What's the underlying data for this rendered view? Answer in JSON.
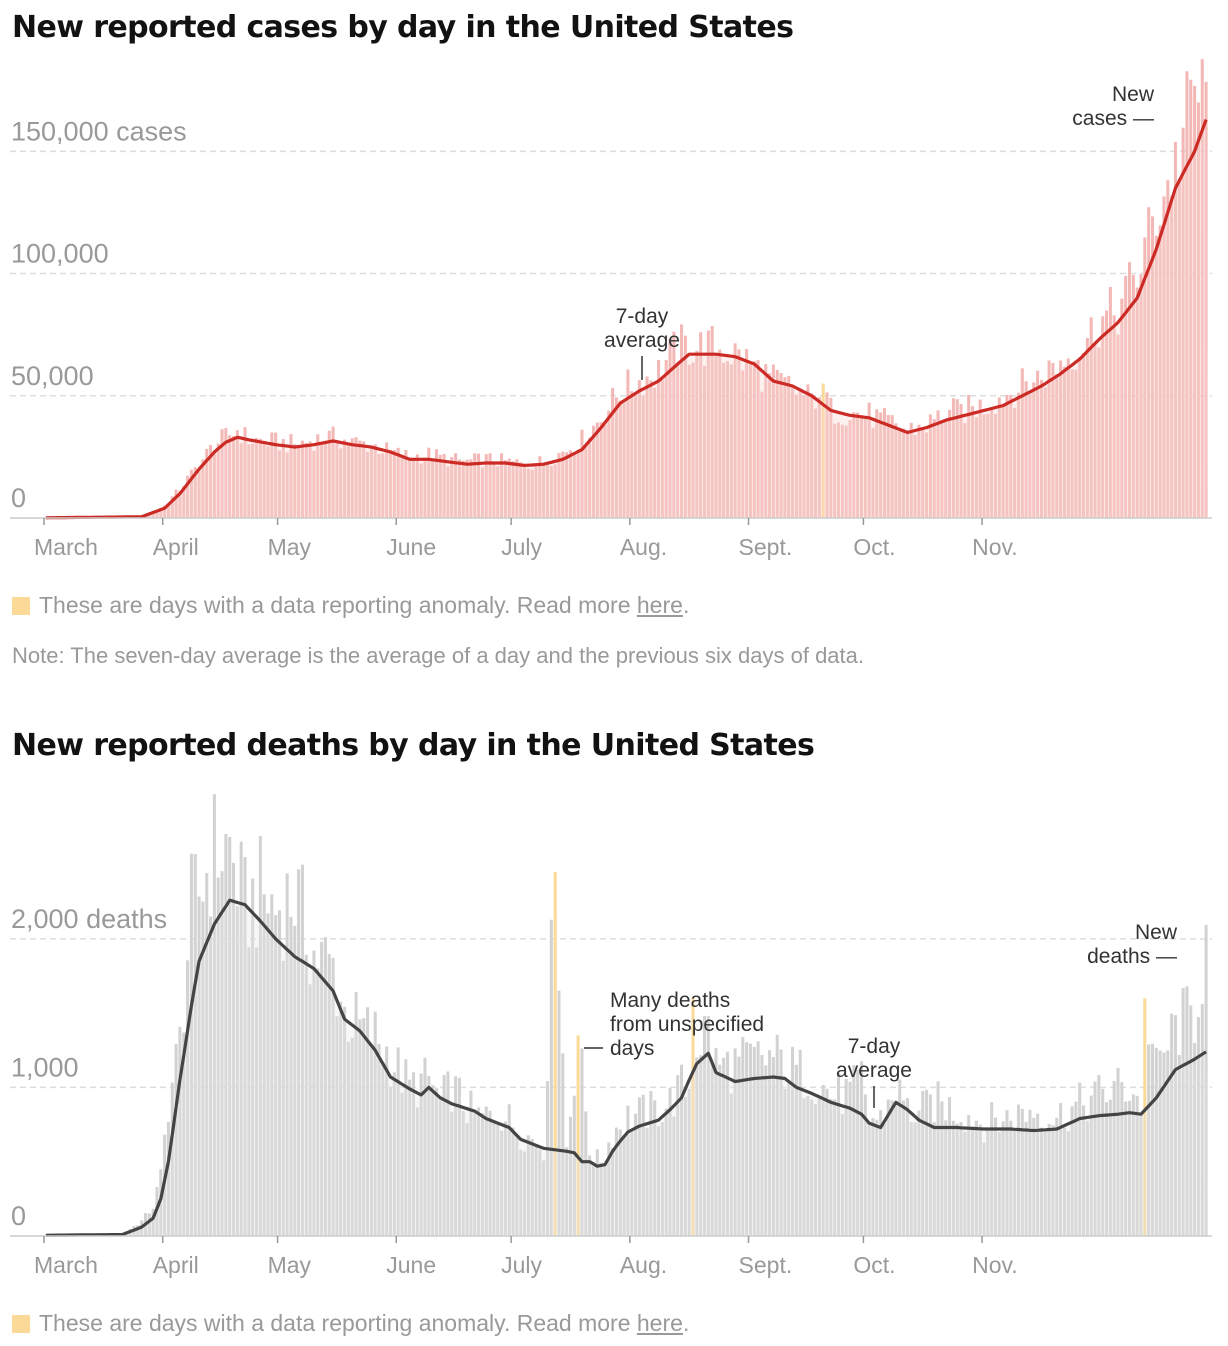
{
  "cases": {
    "title": "New reported cases by day in the United States",
    "legend_text": "These are days with a data reporting anomaly. Read more ",
    "legend_link": "here",
    "legend_end": ".",
    "note": "Note: The seven-day average is the average of a day and the previous six days of data."
  },
  "deaths": {
    "title": "New reported deaths by day in the United States",
    "legend_text": "These are days with a data reporting anomaly. Read more ",
    "legend_link": "here",
    "legend_end": "."
  },
  "colors": {
    "cases_bar": "#f3b8b6",
    "cases_avg": "#cc2a24",
    "deaths_bar": "#d2d2d2",
    "deaths_avg": "#444444",
    "anomaly": "#fbd997",
    "grid": "#dddddd",
    "tick_text": "#999999"
  },
  "chart_data": [
    {
      "type": "bar",
      "ylim": [
        0,
        180000
      ],
      "grid": true,
      "yticks": [
        {
          "value": 0,
          "label": "0"
        },
        {
          "value": 50000,
          "label": "50,000"
        },
        {
          "value": 100000,
          "label": "100,000"
        },
        {
          "value": 150000,
          "label": "150,000 cases"
        }
      ],
      "xticks": [
        "March",
        "April",
        "May",
        "June",
        "July",
        "Aug.",
        "Sept.",
        "Oct.",
        "Nov."
      ],
      "series_names": {
        "bars": "New cases",
        "line": "7-day average"
      },
      "annotations": [
        {
          "text": [
            "7-day",
            "average"
          ]
        },
        {
          "text": [
            "New",
            "cases —"
          ]
        }
      ],
      "anomaly_days": [
        203
      ],
      "average_anchors": [
        [
          0,
          100
        ],
        [
          25,
          500
        ],
        [
          31,
          4000
        ],
        [
          35,
          10000
        ],
        [
          40,
          20000
        ],
        [
          44,
          27000
        ],
        [
          47,
          31000
        ],
        [
          50,
          33000
        ],
        [
          53,
          32000
        ],
        [
          60,
          30000
        ],
        [
          65,
          29000
        ],
        [
          70,
          30000
        ],
        [
          75,
          31500
        ],
        [
          80,
          30000
        ],
        [
          85,
          29000
        ],
        [
          90,
          27000
        ],
        [
          95,
          24000
        ],
        [
          100,
          24000
        ],
        [
          105,
          23000
        ],
        [
          110,
          22000
        ],
        [
          115,
          22500
        ],
        [
          120,
          22500
        ],
        [
          125,
          21500
        ],
        [
          130,
          22000
        ],
        [
          135,
          24000
        ],
        [
          140,
          28000
        ],
        [
          145,
          37000
        ],
        [
          150,
          47000
        ],
        [
          155,
          52000
        ],
        [
          160,
          56000
        ],
        [
          165,
          63000
        ],
        [
          168,
          67000
        ],
        [
          175,
          67000
        ],
        [
          180,
          66000
        ],
        [
          185,
          63000
        ],
        [
          190,
          56000
        ],
        [
          195,
          54000
        ],
        [
          200,
          50000
        ],
        [
          205,
          44000
        ],
        [
          210,
          42000
        ],
        [
          215,
          41000
        ],
        [
          220,
          38000
        ],
        [
          225,
          35000
        ],
        [
          230,
          37000
        ],
        [
          235,
          40000
        ],
        [
          240,
          42000
        ],
        [
          245,
          44000
        ],
        [
          250,
          46000
        ],
        [
          255,
          50000
        ],
        [
          260,
          54000
        ],
        [
          265,
          59000
        ],
        [
          270,
          65000
        ],
        [
          275,
          73000
        ],
        [
          280,
          80000
        ],
        [
          285,
          90000
        ],
        [
          290,
          110000
        ],
        [
          295,
          135000
        ],
        [
          300,
          150000
        ],
        [
          303,
          163000
        ]
      ],
      "daily_anchors": [
        [
          0,
          100
        ],
        [
          25,
          600
        ],
        [
          31,
          5000
        ],
        [
          35,
          12000
        ],
        [
          40,
          22000
        ],
        [
          44,
          30000
        ],
        [
          47,
          33000
        ],
        [
          50,
          36000
        ],
        [
          53,
          32000
        ],
        [
          60,
          31000
        ],
        [
          65,
          30000
        ],
        [
          70,
          32000
        ],
        [
          75,
          33000
        ],
        [
          80,
          31000
        ],
        [
          85,
          30000
        ],
        [
          90,
          27000
        ],
        [
          95,
          25000
        ],
        [
          100,
          26000
        ],
        [
          105,
          24000
        ],
        [
          110,
          23000
        ],
        [
          115,
          24000
        ],
        [
          120,
          23000
        ],
        [
          125,
          22000
        ],
        [
          130,
          23000
        ],
        [
          135,
          27000
        ],
        [
          140,
          32000
        ],
        [
          145,
          41000
        ],
        [
          150,
          52000
        ],
        [
          155,
          56000
        ],
        [
          160,
          60000
        ],
        [
          165,
          70000
        ],
        [
          168,
          70000
        ],
        [
          175,
          70000
        ],
        [
          180,
          67000
        ],
        [
          185,
          62000
        ],
        [
          190,
          56000
        ],
        [
          195,
          53000
        ],
        [
          200,
          48000
        ],
        [
          203,
          55000
        ],
        [
          205,
          44000
        ],
        [
          210,
          43000
        ],
        [
          215,
          42000
        ],
        [
          220,
          39000
        ],
        [
          225,
          36000
        ],
        [
          230,
          38000
        ],
        [
          235,
          43000
        ],
        [
          240,
          44000
        ],
        [
          245,
          46000
        ],
        [
          250,
          50000
        ],
        [
          255,
          54000
        ],
        [
          260,
          58000
        ],
        [
          265,
          64000
        ],
        [
          270,
          70000
        ],
        [
          275,
          80000
        ],
        [
          280,
          85000
        ],
        [
          285,
          100000
        ],
        [
          290,
          125000
        ],
        [
          295,
          145000
        ],
        [
          300,
          175000
        ],
        [
          303,
          170000
        ]
      ]
    },
    {
      "type": "bar",
      "ylim": [
        0,
        2800
      ],
      "grid": true,
      "yticks": [
        {
          "value": 0,
          "label": "0"
        },
        {
          "value": 1000,
          "label": "1,000"
        },
        {
          "value": 2000,
          "label": "2,000 deaths"
        }
      ],
      "xticks": [
        "March",
        "April",
        "May",
        "June",
        "July",
        "Aug.",
        "Sept.",
        "Oct.",
        "Nov."
      ],
      "series_names": {
        "bars": "New deaths",
        "line": "7-day average"
      },
      "annotations": [
        {
          "text": [
            "Many deaths",
            "from unspecified",
            "days"
          ]
        },
        {
          "text": [
            "7-day",
            "average"
          ]
        },
        {
          "text": [
            "New",
            "deaths —"
          ]
        }
      ],
      "anomaly_days": [
        133,
        139,
        169,
        287
      ],
      "average_anchors": [
        [
          0,
          5
        ],
        [
          20,
          10
        ],
        [
          25,
          60
        ],
        [
          28,
          120
        ],
        [
          30,
          250
        ],
        [
          32,
          500
        ],
        [
          35,
          1050
        ],
        [
          38,
          1550
        ],
        [
          40,
          1850
        ],
        [
          44,
          2100
        ],
        [
          48,
          2260
        ],
        [
          52,
          2230
        ],
        [
          56,
          2120
        ],
        [
          60,
          2000
        ],
        [
          65,
          1880
        ],
        [
          70,
          1800
        ],
        [
          75,
          1650
        ],
        [
          78,
          1460
        ],
        [
          82,
          1380
        ],
        [
          86,
          1250
        ],
        [
          90,
          1070
        ],
        [
          95,
          990
        ],
        [
          98,
          950
        ],
        [
          100,
          1000
        ],
        [
          103,
          930
        ],
        [
          106,
          890
        ],
        [
          112,
          840
        ],
        [
          115,
          790
        ],
        [
          118,
          760
        ],
        [
          121,
          730
        ],
        [
          124,
          650
        ],
        [
          127,
          620
        ],
        [
          130,
          590
        ],
        [
          133,
          580
        ],
        [
          136,
          570
        ],
        [
          138,
          560
        ],
        [
          140,
          500
        ],
        [
          142,
          500
        ],
        [
          144,
          470
        ],
        [
          146,
          480
        ],
        [
          148,
          570
        ],
        [
          150,
          640
        ],
        [
          152,
          700
        ],
        [
          155,
          740
        ],
        [
          160,
          780
        ],
        [
          163,
          850
        ],
        [
          166,
          930
        ],
        [
          168,
          1050
        ],
        [
          170,
          1160
        ],
        [
          173,
          1230
        ],
        [
          175,
          1100
        ],
        [
          180,
          1040
        ],
        [
          185,
          1060
        ],
        [
          190,
          1070
        ],
        [
          193,
          1060
        ],
        [
          196,
          1000
        ],
        [
          200,
          960
        ],
        [
          205,
          900
        ],
        [
          210,
          860
        ],
        [
          213,
          820
        ],
        [
          215,
          760
        ],
        [
          218,
          730
        ],
        [
          222,
          900
        ],
        [
          225,
          850
        ],
        [
          228,
          780
        ],
        [
          232,
          730
        ],
        [
          238,
          730
        ],
        [
          245,
          720
        ],
        [
          252,
          720
        ],
        [
          258,
          710
        ],
        [
          264,
          720
        ],
        [
          270,
          790
        ],
        [
          275,
          810
        ],
        [
          280,
          820
        ],
        [
          283,
          830
        ],
        [
          286,
          820
        ],
        [
          290,
          930
        ],
        [
          295,
          1120
        ],
        [
          300,
          1190
        ],
        [
          303,
          1240
        ]
      ],
      "daily_anchors": [
        [
          0,
          5
        ],
        [
          20,
          15
        ],
        [
          25,
          100
        ],
        [
          28,
          200
        ],
        [
          30,
          400
        ],
        [
          32,
          900
        ],
        [
          35,
          1300
        ],
        [
          38,
          2200
        ],
        [
          40,
          2300
        ],
        [
          44,
          2600
        ],
        [
          48,
          2600
        ],
        [
          52,
          2200
        ],
        [
          56,
          2300
        ],
        [
          60,
          2200
        ],
        [
          65,
          2300
        ],
        [
          70,
          1900
        ],
        [
          75,
          1800
        ],
        [
          78,
          1500
        ],
        [
          82,
          1400
        ],
        [
          86,
          1350
        ],
        [
          90,
          1200
        ],
        [
          95,
          1000
        ],
        [
          100,
          1050
        ],
        [
          103,
          900
        ],
        [
          106,
          1000
        ],
        [
          112,
          800
        ],
        [
          115,
          800
        ],
        [
          118,
          850
        ],
        [
          121,
          780
        ],
        [
          124,
          700
        ],
        [
          127,
          650
        ],
        [
          130,
          600
        ],
        [
          133,
          2450
        ],
        [
          136,
          600
        ],
        [
          139,
          1350
        ],
        [
          142,
          600
        ],
        [
          144,
          500
        ],
        [
          146,
          550
        ],
        [
          148,
          700
        ],
        [
          150,
          750
        ],
        [
          152,
          800
        ],
        [
          155,
          820
        ],
        [
          160,
          850
        ],
        [
          163,
          900
        ],
        [
          166,
          1000
        ],
        [
          168,
          1000
        ],
        [
          169,
          1600
        ],
        [
          170,
          1300
        ],
        [
          173,
          1400
        ],
        [
          175,
          1150
        ],
        [
          180,
          1150
        ],
        [
          185,
          1180
        ],
        [
          190,
          1200
        ],
        [
          193,
          1150
        ],
        [
          196,
          1100
        ],
        [
          200,
          1080
        ],
        [
          205,
          950
        ],
        [
          210,
          950
        ],
        [
          213,
          1050
        ],
        [
          215,
          800
        ],
        [
          218,
          780
        ],
        [
          222,
          1000
        ],
        [
          225,
          850
        ],
        [
          228,
          820
        ],
        [
          232,
          900
        ],
        [
          238,
          850
        ],
        [
          245,
          760
        ],
        [
          252,
          800
        ],
        [
          258,
          850
        ],
        [
          264,
          800
        ],
        [
          270,
          880
        ],
        [
          275,
          950
        ],
        [
          280,
          1000
        ],
        [
          283,
          1000
        ],
        [
          286,
          900
        ],
        [
          287,
          1600
        ],
        [
          290,
          1100
        ],
        [
          295,
          1400
        ],
        [
          300,
          1500
        ],
        [
          303,
          1950
        ]
      ]
    }
  ]
}
